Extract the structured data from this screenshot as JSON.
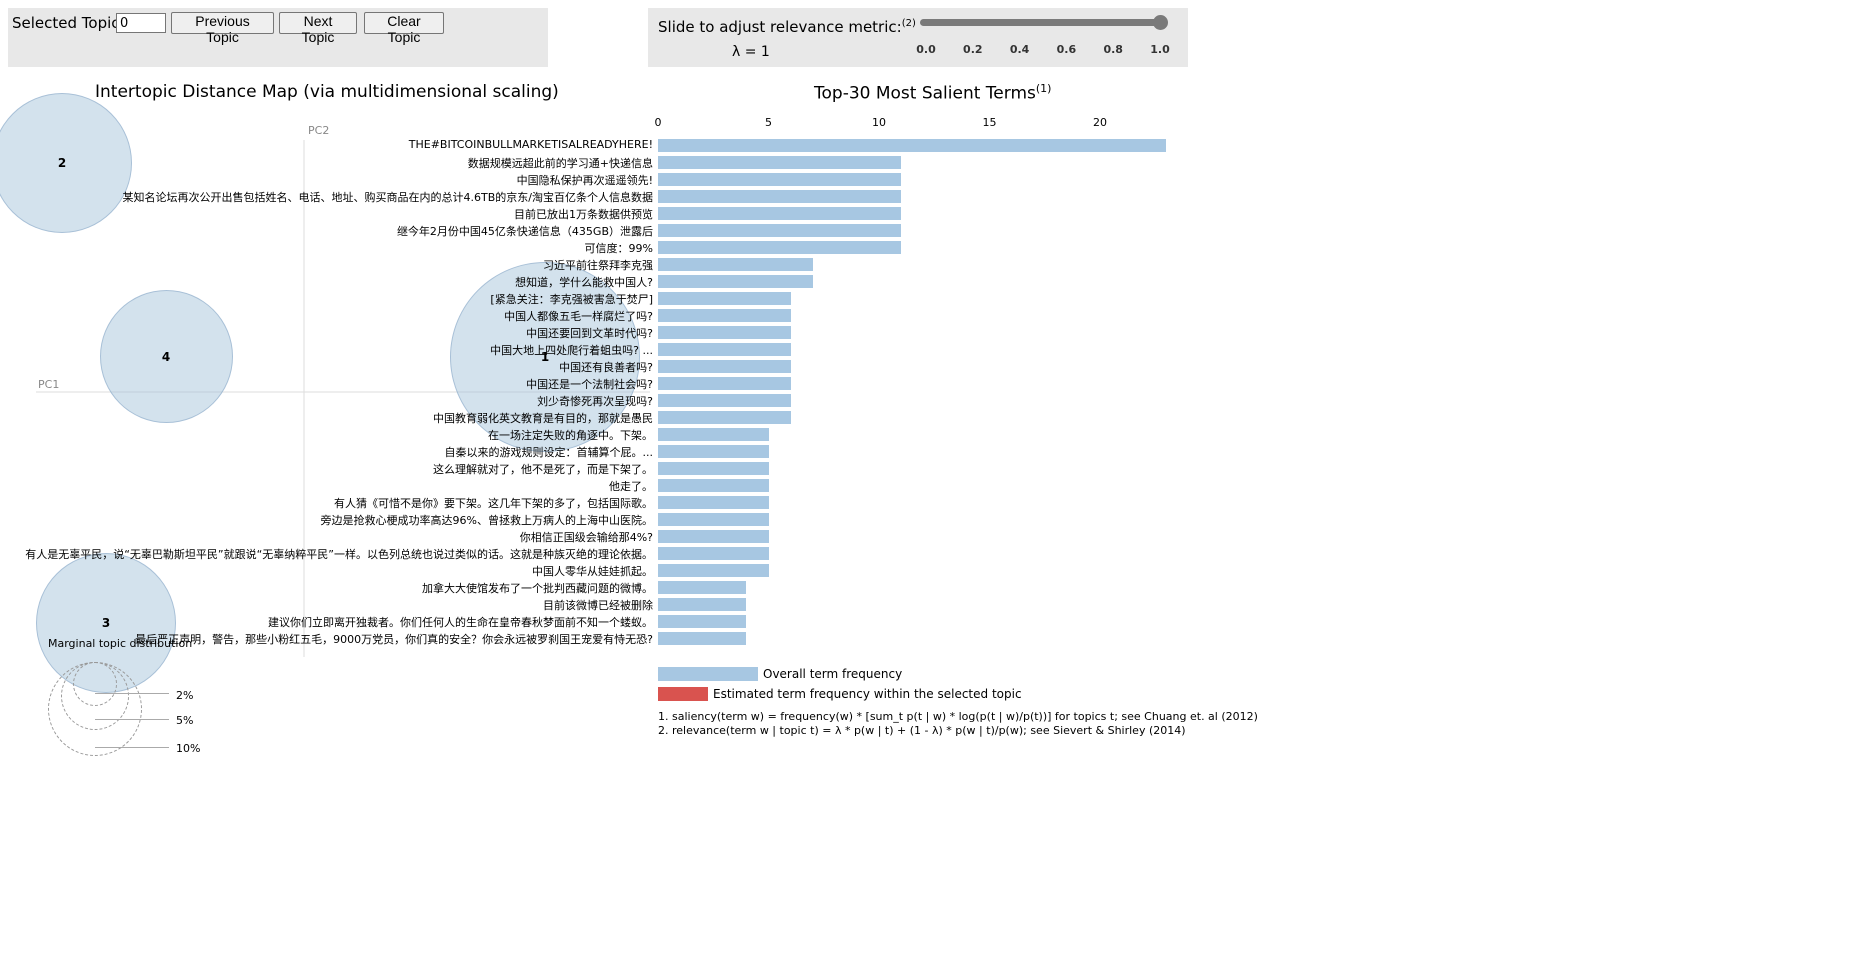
{
  "topic_control": {
    "label": "Selected Topic:",
    "value": "0",
    "prev_label": "Previous Topic",
    "next_label": "Next Topic",
    "clear_label": "Clear Topic"
  },
  "lambda_control": {
    "label": "Slide to adjust relevance metric:",
    "note_ref": "(2)",
    "lambda_text": "λ = 1",
    "value": 1.0,
    "ticks": [
      "0.0",
      "0.2",
      "0.4",
      "0.6",
      "0.8",
      "1.0"
    ]
  },
  "map": {
    "title": "Intertopic Distance Map (via multidimensional scaling)",
    "pc1": "PC1",
    "pc2": "PC2",
    "topics": [
      {
        "id": "2"
      },
      {
        "id": "4"
      },
      {
        "id": "1"
      },
      {
        "id": "3"
      }
    ],
    "marginal_title": "Marginal topic distribution",
    "marginal_labels": [
      "2%",
      "5%",
      "10%"
    ]
  },
  "terms_chart": {
    "title": "Top-30 Most Salient Terms",
    "title_ref": "(1)",
    "x_ticks": [
      "0",
      "5",
      "10",
      "15",
      "20"
    ],
    "legend_overall": "Overall term frequency",
    "legend_selected": "Estimated term frequency within the selected topic",
    "note1": "1. saliency(term w) = frequency(w) * [sum_t p(t | w) * log(p(t | w)/p(t))] for topics t; see Chuang et. al (2012)",
    "note2": "2. relevance(term w | topic t) = λ * p(w | t) + (1 - λ) * p(w | t)/p(w); see Sievert & Shirley (2014)"
  },
  "chart_data": {
    "type": "bar",
    "title": "Top-30 Most Salient Terms",
    "xlim": [
      0,
      23
    ],
    "categories": [
      "THE#BITCOINBULLMARKETISALREADYHERE!",
      "数据规模远超此前的学习通+快递信息",
      "中国隐私保护再次遥遥领先!",
      "某知名论坛再次公开出售包括姓名、电话、地址、购买商品在内的总计4.6TB的京东/淘宝百亿条个人信息数据",
      "目前已放出1万条数据供预览",
      "继今年2月份中国45亿条快递信息（435GB）泄露后",
      "可信度：99%",
      "习近平前往祭拜李克强",
      "想知道，学什么能救中国人?",
      "[紧急关注：李克强被害急于焚尸]",
      "中国人都像五毛一样腐烂了吗?",
      "中国还要回到文革时代吗?",
      "中国大地上四处爬行着蛆虫吗? ...",
      "中国还有良善者吗?",
      "中国还是一个法制社会吗?",
      "刘少奇惨死再次呈现吗?",
      "中国教育弱化英文教育是有目的，那就是愚民",
      "在一场注定失败的角逐中。下架。",
      "自秦以来的游戏规则设定：首辅算个屁。...",
      "这么理解就对了，他不是死了，而是下架了。",
      "他走了。",
      "有人猜《可惜不是你》要下架。这几年下架的多了，包括国际歌。",
      "旁边是抢救心梗成功率高达96%、曾拯救上万病人的上海中山医院。",
      "你相信正国级会输给那4%?",
      "有人是无辜平民，说“无辜巴勒斯坦平民”就跟说“无辜纳粹平民”一样。以色列总统也说过类似的话。这就是种族灭绝的理论依据。",
      "中国人零华从娃娃抓起。",
      "加拿大大使馆发布了一个批判西藏问题的微博。",
      "目前该微博已经被删除",
      "建议你们立即离开独裁者。你们任何人的生命在皇帝春秋梦面前不知一个蝼蚁。",
      "最后严正声明，警告，那些小粉红五毛，9000万党员，你们真的安全？你会永远被罗刹国王宠爱有恃无恐?"
    ],
    "series": [
      {
        "values": [
          23,
          11,
          11,
          11,
          11,
          11,
          11,
          7,
          7,
          6,
          6,
          6,
          6,
          6,
          6,
          6,
          6,
          5,
          5,
          5,
          5,
          5,
          5,
          5,
          5,
          5,
          4,
          4,
          4,
          4
        ]
      }
    ],
    "colors": {
      "overall": "#a7c7e2",
      "selected": "#d9534f"
    }
  }
}
